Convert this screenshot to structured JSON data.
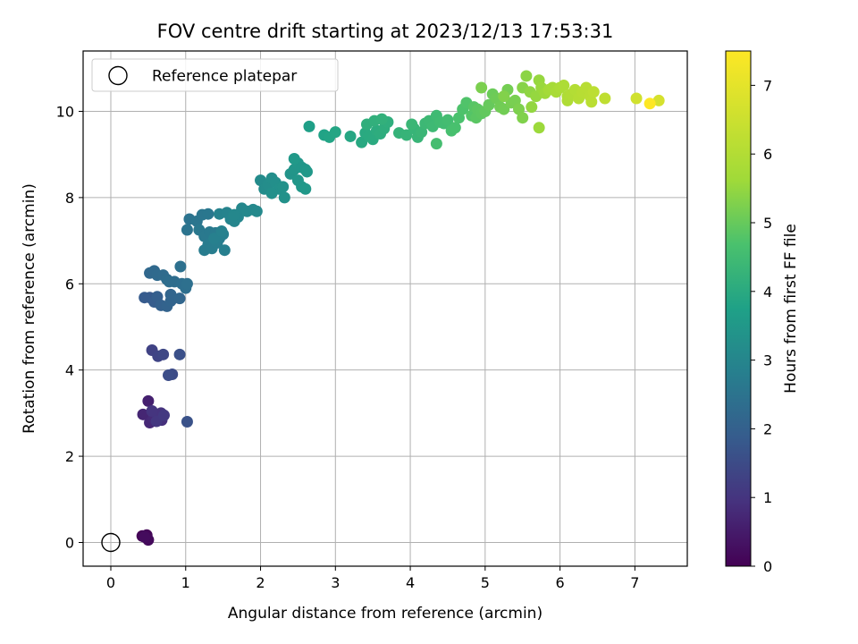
{
  "chart_data": {
    "type": "scatter",
    "title": "FOV centre drift starting at 2023/12/13 17:53:31",
    "xlabel": "Angular distance from reference (arcmin)",
    "ylabel": "Rotation from reference (arcmin)",
    "xlim": [
      -0.37,
      7.7
    ],
    "ylim": [
      -0.55,
      11.4
    ],
    "xticks": [
      "0",
      "1",
      "2",
      "3",
      "4",
      "5",
      "6",
      "7"
    ],
    "yticks": [
      "0",
      "2",
      "4",
      "6",
      "8",
      "10"
    ],
    "grid": true,
    "legend": {
      "placement": "upper-left",
      "entries": [
        "Reference platepar"
      ]
    },
    "reference_point": {
      "x": 0,
      "y": 0,
      "label": "Reference platepar"
    },
    "colorbar": {
      "label": "Hours from first FF file",
      "range": [
        0,
        7.5
      ],
      "ticks": [
        "0",
        "1",
        "2",
        "3",
        "4",
        "5",
        "6",
        "7"
      ],
      "colormap": "viridis"
    },
    "series": [
      {
        "points": [
          [
            0.42,
            0.15,
            0.05
          ],
          [
            0.48,
            0.17,
            0.1
          ],
          [
            0.5,
            0.06,
            0.15
          ],
          [
            0.45,
            0.13,
            0.2
          ],
          [
            0.5,
            3.28,
            0.6
          ],
          [
            0.43,
            2.97,
            0.7
          ],
          [
            0.52,
            2.78,
            0.75
          ],
          [
            0.57,
            2.87,
            0.8
          ],
          [
            0.63,
            2.95,
            0.85
          ],
          [
            0.68,
            2.84,
            0.9
          ],
          [
            0.67,
            3.0,
            0.95
          ],
          [
            0.55,
            3.05,
            1.0
          ],
          [
            0.61,
            2.81,
            1.05
          ],
          [
            0.71,
            2.95,
            1.1
          ],
          [
            0.55,
            4.46,
            1.3
          ],
          [
            0.63,
            4.32,
            1.35
          ],
          [
            0.7,
            4.36,
            1.4
          ],
          [
            0.82,
            3.9,
            1.5
          ],
          [
            0.77,
            3.88,
            1.55
          ],
          [
            0.92,
            4.36,
            1.6
          ],
          [
            1.02,
            2.8,
            1.65
          ],
          [
            0.52,
            5.68,
            1.8
          ],
          [
            0.45,
            5.68,
            1.85
          ],
          [
            0.58,
            5.58,
            1.9
          ],
          [
            0.62,
            5.7,
            1.95
          ],
          [
            0.67,
            5.5,
            2.0
          ],
          [
            0.75,
            5.48,
            2.05
          ],
          [
            0.8,
            5.6,
            2.1
          ],
          [
            0.8,
            5.75,
            2.12
          ],
          [
            0.92,
            5.66,
            2.15
          ],
          [
            0.52,
            6.25,
            2.2
          ],
          [
            0.58,
            6.3,
            2.22
          ],
          [
            0.62,
            6.2,
            2.25
          ],
          [
            0.7,
            6.2,
            2.28
          ],
          [
            0.75,
            6.1,
            2.3
          ],
          [
            0.85,
            6.05,
            2.33
          ],
          [
            0.95,
            6.0,
            2.36
          ],
          [
            1.0,
            5.9,
            2.38
          ],
          [
            1.02,
            6.0,
            2.4
          ],
          [
            0.93,
            6.4,
            2.42
          ],
          [
            0.78,
            6.05,
            2.32
          ],
          [
            1.05,
            7.5,
            2.5
          ],
          [
            1.02,
            7.25,
            2.52
          ],
          [
            1.15,
            7.45,
            2.55
          ],
          [
            1.22,
            7.6,
            2.57
          ],
          [
            1.3,
            7.62,
            2.6
          ],
          [
            1.18,
            7.25,
            2.62
          ],
          [
            1.25,
            7.1,
            2.64
          ],
          [
            1.32,
            7.2,
            2.66
          ],
          [
            1.4,
            7.18,
            2.68
          ],
          [
            1.45,
            7.05,
            2.7
          ],
          [
            1.3,
            6.9,
            2.72
          ],
          [
            1.25,
            6.78,
            2.74
          ],
          [
            1.35,
            6.82,
            2.76
          ],
          [
            1.42,
            6.95,
            2.78
          ],
          [
            1.5,
            7.15,
            2.8
          ],
          [
            1.52,
            6.78,
            2.82
          ],
          [
            1.38,
            7.05,
            2.84
          ],
          [
            1.48,
            7.22,
            2.86
          ],
          [
            1.45,
            7.62,
            2.9
          ],
          [
            1.55,
            7.65,
            2.92
          ],
          [
            1.6,
            7.5,
            2.95
          ],
          [
            1.65,
            7.45,
            2.97
          ],
          [
            1.7,
            7.55,
            3.0
          ],
          [
            1.75,
            7.75,
            3.02
          ],
          [
            1.82,
            7.68,
            3.05
          ],
          [
            1.9,
            7.72,
            3.07
          ],
          [
            1.95,
            7.68,
            3.1
          ],
          [
            1.65,
            7.6,
            3.03
          ],
          [
            2.0,
            8.4,
            3.15
          ],
          [
            2.05,
            8.2,
            3.18
          ],
          [
            2.1,
            8.3,
            3.2
          ],
          [
            2.15,
            8.45,
            3.22
          ],
          [
            2.2,
            8.35,
            3.25
          ],
          [
            2.25,
            8.2,
            3.27
          ],
          [
            2.3,
            8.25,
            3.3
          ],
          [
            2.32,
            8.0,
            3.32
          ],
          [
            2.15,
            8.1,
            3.28
          ],
          [
            2.4,
            8.55,
            3.4
          ],
          [
            2.45,
            8.65,
            3.42
          ],
          [
            2.5,
            8.8,
            3.44
          ],
          [
            2.55,
            8.7,
            3.46
          ],
          [
            2.6,
            8.65,
            3.48
          ],
          [
            2.62,
            8.6,
            3.5
          ],
          [
            2.5,
            8.4,
            3.45
          ],
          [
            2.55,
            8.25,
            3.47
          ],
          [
            2.6,
            8.2,
            3.49
          ],
          [
            2.45,
            8.9,
            3.52
          ],
          [
            2.65,
            9.65,
            3.7
          ],
          [
            2.85,
            9.45,
            3.8
          ],
          [
            2.92,
            9.4,
            3.83
          ],
          [
            3.0,
            9.52,
            3.86
          ],
          [
            3.2,
            9.42,
            3.9
          ],
          [
            3.35,
            9.28,
            3.95
          ],
          [
            3.4,
            9.5,
            3.98
          ],
          [
            3.45,
            9.42,
            4.0
          ],
          [
            3.5,
            9.35,
            4.02
          ],
          [
            3.55,
            9.55,
            4.05
          ],
          [
            3.6,
            9.48,
            4.07
          ],
          [
            3.65,
            9.6,
            4.1
          ],
          [
            3.7,
            9.75,
            4.12
          ],
          [
            3.42,
            9.7,
            4.14
          ],
          [
            3.52,
            9.78,
            4.16
          ],
          [
            3.62,
            9.82,
            4.18
          ],
          [
            3.85,
            9.5,
            4.25
          ],
          [
            3.95,
            9.45,
            4.28
          ],
          [
            4.05,
            9.6,
            4.3
          ],
          [
            4.1,
            9.4,
            4.32
          ],
          [
            4.15,
            9.52,
            4.35
          ],
          [
            4.02,
            9.7,
            4.37
          ],
          [
            4.2,
            9.72,
            4.4
          ],
          [
            4.25,
            9.78,
            4.42
          ],
          [
            4.3,
            9.65,
            4.45
          ],
          [
            4.35,
            9.9,
            4.47
          ],
          [
            4.4,
            9.75,
            4.5
          ],
          [
            4.45,
            9.72,
            4.52
          ],
          [
            4.5,
            9.8,
            4.55
          ],
          [
            4.35,
            9.25,
            4.57
          ],
          [
            4.55,
            9.55,
            4.62
          ],
          [
            4.6,
            9.62,
            4.65
          ],
          [
            4.65,
            9.85,
            4.68
          ],
          [
            4.7,
            10.05,
            4.72
          ],
          [
            4.75,
            10.2,
            4.75
          ],
          [
            4.82,
            9.9,
            4.8
          ],
          [
            4.85,
            10.1,
            4.83
          ],
          [
            4.88,
            9.85,
            4.86
          ],
          [
            4.9,
            10.05,
            4.88
          ],
          [
            4.95,
            9.95,
            4.9
          ],
          [
            5.0,
            10.0,
            4.95
          ],
          [
            5.05,
            10.15,
            5.0
          ],
          [
            5.1,
            10.4,
            5.05
          ],
          [
            5.15,
            10.3,
            5.08
          ],
          [
            5.2,
            10.1,
            5.1
          ],
          [
            5.25,
            10.05,
            5.12
          ],
          [
            5.3,
            10.5,
            5.15
          ],
          [
            5.35,
            10.2,
            5.18
          ],
          [
            5.4,
            10.25,
            5.2
          ],
          [
            4.95,
            10.55,
            5.22
          ],
          [
            5.45,
            10.05,
            5.25
          ],
          [
            5.5,
            9.85,
            5.28
          ],
          [
            5.25,
            10.35,
            5.3
          ],
          [
            5.5,
            10.55,
            5.35
          ],
          [
            5.55,
            10.82,
            5.4
          ],
          [
            5.6,
            10.45,
            5.45
          ],
          [
            5.62,
            10.1,
            5.48
          ],
          [
            5.68,
            10.35,
            5.5
          ],
          [
            5.72,
            10.72,
            5.52
          ],
          [
            5.75,
            10.55,
            5.55
          ],
          [
            5.72,
            9.62,
            5.58
          ],
          [
            5.8,
            10.42,
            5.6
          ],
          [
            5.85,
            10.5,
            5.7
          ],
          [
            5.9,
            10.55,
            5.75
          ],
          [
            5.95,
            10.45,
            5.8
          ],
          [
            6.0,
            10.55,
            5.85
          ],
          [
            6.05,
            10.6,
            5.88
          ],
          [
            6.1,
            10.35,
            5.9
          ],
          [
            6.1,
            10.25,
            5.93
          ],
          [
            6.15,
            10.4,
            5.96
          ],
          [
            6.2,
            10.5,
            6.0
          ],
          [
            6.25,
            10.3,
            6.05
          ],
          [
            6.3,
            10.45,
            6.08
          ],
          [
            6.35,
            10.55,
            6.1
          ],
          [
            6.4,
            10.35,
            6.12
          ],
          [
            6.42,
            10.22,
            6.15
          ],
          [
            6.45,
            10.45,
            6.18
          ],
          [
            6.6,
            10.3,
            6.25
          ],
          [
            7.02,
            10.3,
            6.6
          ],
          [
            7.32,
            10.25,
            6.7
          ],
          [
            7.2,
            10.18,
            7.5
          ]
        ]
      }
    ]
  }
}
